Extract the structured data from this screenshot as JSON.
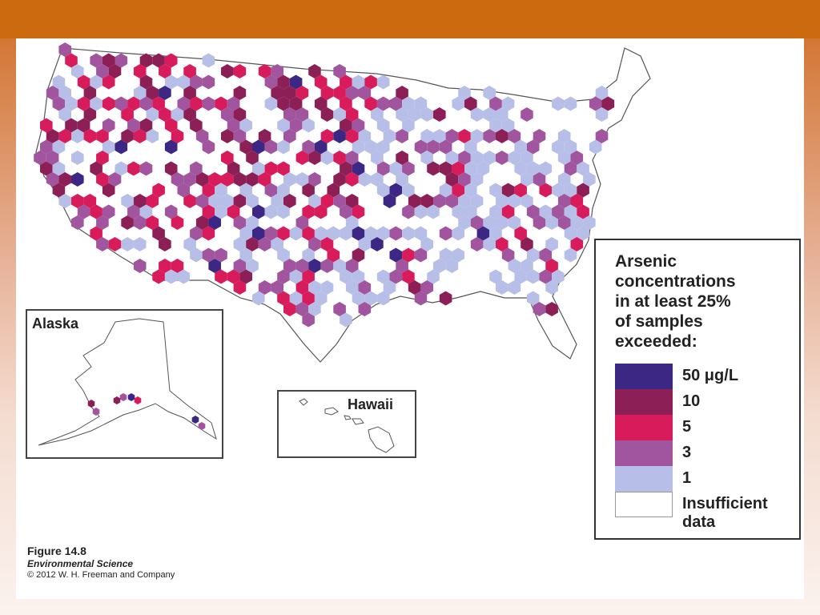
{
  "colors": {
    "c50": "#3d2785",
    "c10": "#8c2056",
    "c5": "#d81b5a",
    "c3": "#a0559e",
    "c1": "#b7bfe8",
    "insufficient": "#ffffff",
    "outline": "#555555"
  },
  "legend": {
    "title_lines": [
      "Arsenic",
      "concentrations",
      "in at least 25%",
      "of samples",
      "exceeded:"
    ],
    "items": [
      {
        "label": "50 μg/L",
        "color_key": "c50"
      },
      {
        "label": "10",
        "color_key": "c10"
      },
      {
        "label": "5",
        "color_key": "c5"
      },
      {
        "label": "3",
        "color_key": "c3"
      },
      {
        "label": "1",
        "color_key": "c1"
      },
      {
        "label": "Insufficient data",
        "color_key": "insufficient"
      }
    ]
  },
  "insets": {
    "alaska": {
      "title": "Alaska"
    },
    "hawaii": {
      "title": "Hawaii"
    }
  },
  "caption": {
    "figure": "Figure 14.8",
    "book": "Environmental Science",
    "copyright": "© 2012 W. H. Freeman and Company"
  }
}
